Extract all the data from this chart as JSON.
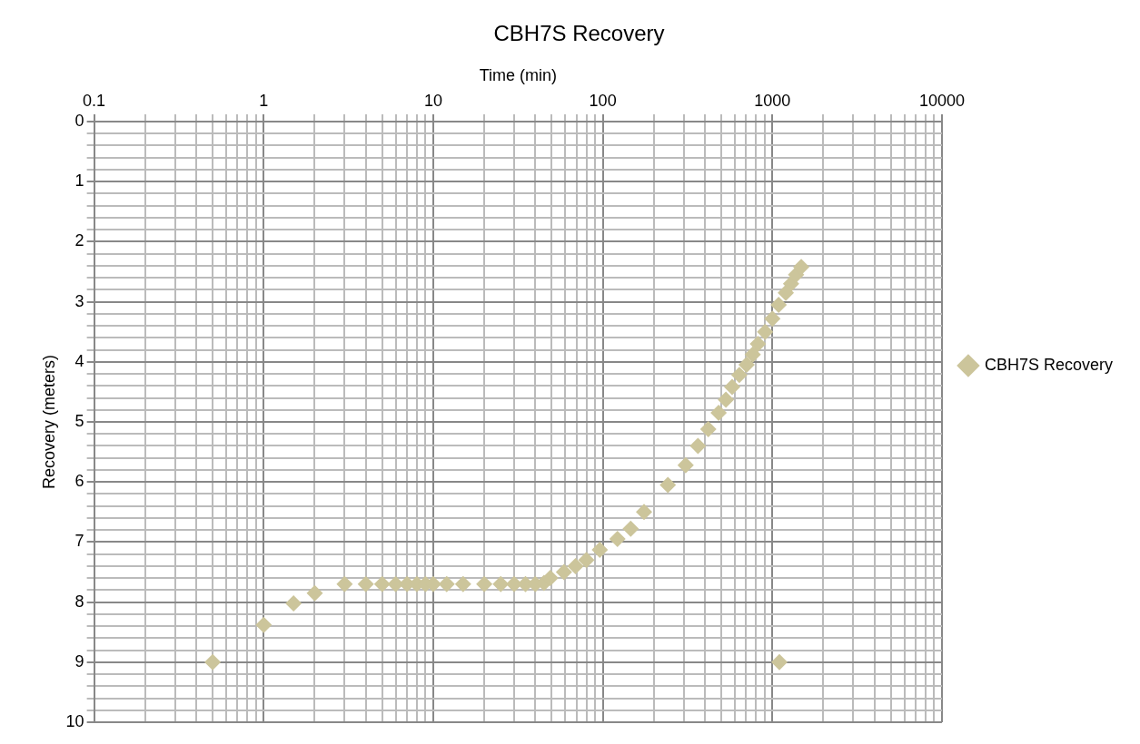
{
  "chart_data": {
    "type": "scatter",
    "title": "CBH7S Recovery",
    "xlabel": "Time (min)",
    "ylabel": "Recovery (meters)",
    "log": "x",
    "grid": true,
    "legend": "right",
    "marker": "diamond",
    "xlim": [
      0.1,
      10000
    ],
    "xticks": [
      0.1,
      {
        "value": 0.2,
        "label": null
      },
      {
        "value": 0.3,
        "label": null
      },
      {
        "value": 0.4,
        "label": null
      },
      {
        "value": 0.5,
        "label": null
      },
      {
        "value": 0.6,
        "label": null
      },
      {
        "value": 0.7,
        "label": null
      },
      {
        "value": 0.8,
        "label": null
      },
      {
        "value": 0.9,
        "label": null
      },
      1,
      {
        "value": 2,
        "label": null
      },
      {
        "value": 3,
        "label": null
      },
      {
        "value": 4,
        "label": null
      },
      {
        "value": 5,
        "label": null
      },
      {
        "value": 6,
        "label": null
      },
      {
        "value": 7,
        "label": null
      },
      {
        "value": 8,
        "label": null
      },
      {
        "value": 9,
        "label": null
      },
      10,
      {
        "value": 20,
        "label": null
      },
      {
        "value": 30,
        "label": null
      },
      {
        "value": 40,
        "label": null
      },
      {
        "value": 50,
        "label": null
      },
      {
        "value": 60,
        "label": null
      },
      {
        "value": 70,
        "label": null
      },
      {
        "value": 80,
        "label": null
      },
      {
        "value": 90,
        "label": null
      },
      100,
      {
        "value": 200,
        "label": null
      },
      {
        "value": 300,
        "label": null
      },
      {
        "value": 400,
        "label": null
      },
      {
        "value": 500,
        "label": null
      },
      {
        "value": 600,
        "label": null
      },
      {
        "value": 700,
        "label": null
      },
      {
        "value": 800,
        "label": null
      },
      {
        "value": 900,
        "label": null
      },
      1000,
      {
        "value": 2000,
        "label": null
      },
      {
        "value": 3000,
        "label": null
      },
      {
        "value": 4000,
        "label": null
      },
      {
        "value": 5000,
        "label": null
      },
      {
        "value": 6000,
        "label": null
      },
      {
        "value": 7000,
        "label": null
      },
      {
        "value": 8000,
        "label": null
      },
      {
        "value": 9000,
        "label": null
      },
      10000
    ],
    "ylim": [
      10,
      0
    ],
    "yticks": [
      0,
      {
        "value": 0.2,
        "label": null
      },
      {
        "value": 0.4,
        "label": null
      },
      {
        "value": 0.6,
        "label": null
      },
      {
        "value": 0.8,
        "label": null
      },
      1,
      {
        "value": 1.2,
        "label": null
      },
      {
        "value": 1.4,
        "label": null
      },
      {
        "value": 1.6,
        "label": null
      },
      {
        "value": 1.8,
        "label": null
      },
      2,
      {
        "value": 2.2,
        "label": null
      },
      {
        "value": 2.4,
        "label": null
      },
      {
        "value": 2.6,
        "label": null
      },
      {
        "value": 2.8,
        "label": null
      },
      3,
      {
        "value": 3.2,
        "label": null
      },
      {
        "value": 3.4,
        "label": null
      },
      {
        "value": 3.6,
        "label": null
      },
      {
        "value": 3.8,
        "label": null
      },
      4,
      {
        "value": 4.2,
        "label": null
      },
      {
        "value": 4.4,
        "label": null
      },
      {
        "value": 4.6,
        "label": null
      },
      {
        "value": 4.8,
        "label": null
      },
      5,
      {
        "value": 5.2,
        "label": null
      },
      {
        "value": 5.4,
        "label": null
      },
      {
        "value": 5.6,
        "label": null
      },
      {
        "value": 5.8,
        "label": null
      },
      6,
      {
        "value": 6.2,
        "label": null
      },
      {
        "value": 6.4,
        "label": null
      },
      {
        "value": 6.6,
        "label": null
      },
      {
        "value": 6.8,
        "label": null
      },
      7,
      {
        "value": 7.2,
        "label": null
      },
      {
        "value": 7.4,
        "label": null
      },
      {
        "value": 7.6,
        "label": null
      },
      {
        "value": 7.8,
        "label": null
      },
      8,
      {
        "value": 8.2,
        "label": null
      },
      {
        "value": 8.4,
        "label": null
      },
      {
        "value": 8.6,
        "label": null
      },
      {
        "value": 8.8,
        "label": null
      },
      9,
      {
        "value": 9.2,
        "label": null
      },
      {
        "value": 9.4,
        "label": null
      },
      {
        "value": 9.6,
        "label": null
      },
      {
        "value": 9.8,
        "label": null
      },
      10
    ],
    "series": [
      {
        "name": "CBH7S Recovery",
        "color": "#ccc59b",
        "x": [
          0.5,
          1,
          1.5,
          2,
          3,
          4,
          5,
          6,
          7,
          8,
          9,
          10,
          12,
          15,
          20,
          25,
          30,
          35,
          40,
          45,
          49,
          59,
          69,
          80,
          96,
          122,
          146,
          175,
          242,
          308,
          364,
          419,
          482,
          532,
          579,
          638,
          705,
          766,
          822,
          906,
          1000,
          1089,
          1200,
          1289,
          1380,
          1480,
          1100
        ],
        "values": [
          9.0,
          8.38,
          8.02,
          7.85,
          7.7,
          7.7,
          7.7,
          7.7,
          7.7,
          7.7,
          7.7,
          7.7,
          7.7,
          7.7,
          7.7,
          7.7,
          7.7,
          7.7,
          7.7,
          7.68,
          7.6,
          7.5,
          7.4,
          7.3,
          7.13,
          6.95,
          6.78,
          6.5,
          6.05,
          5.72,
          5.4,
          5.12,
          4.85,
          4.63,
          4.42,
          4.22,
          4.05,
          3.88,
          3.7,
          3.5,
          3.28,
          3.05,
          2.85,
          2.7,
          2.55,
          2.42,
          9.0
        ]
      }
    ]
  }
}
